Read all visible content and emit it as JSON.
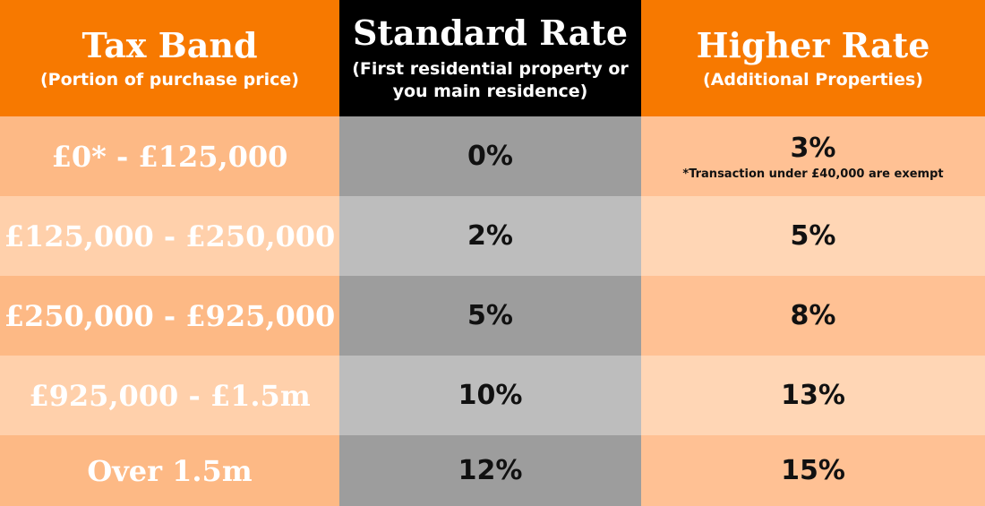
{
  "header": {
    "tax_band": {
      "title": "Tax Band",
      "subtitle": "(Portion of purchase price)"
    },
    "standard_rate": {
      "title": "Standard Rate",
      "subtitle_line1": "(First residential property or",
      "subtitle_line2": "you main residence)"
    },
    "higher_rate": {
      "title": "Higher Rate",
      "subtitle": "(Additional Properties)"
    }
  },
  "rows": [
    {
      "band": "£0* - £125,000",
      "standard": "0%",
      "higher": "3%",
      "note": "*Transaction under £40,000 are exempt"
    },
    {
      "band": "£125,000 - £250,000",
      "standard": "2%",
      "higher": "5%"
    },
    {
      "band": "£250,000 - £925,000",
      "standard": "5%",
      "higher": "8%"
    },
    {
      "band": "£925,000 - £1.5m",
      "standard": "10%",
      "higher": "13%"
    },
    {
      "band": "Over 1.5m",
      "standard": "12%",
      "higher": "15%"
    }
  ],
  "colors": {
    "header_orange": "#f77900",
    "header_black": "#000000",
    "band_dark": "#fdb985",
    "band_light": "#ffd0ab",
    "standard_dark": "#9d9d9d",
    "standard_light": "#bdbdbd"
  }
}
